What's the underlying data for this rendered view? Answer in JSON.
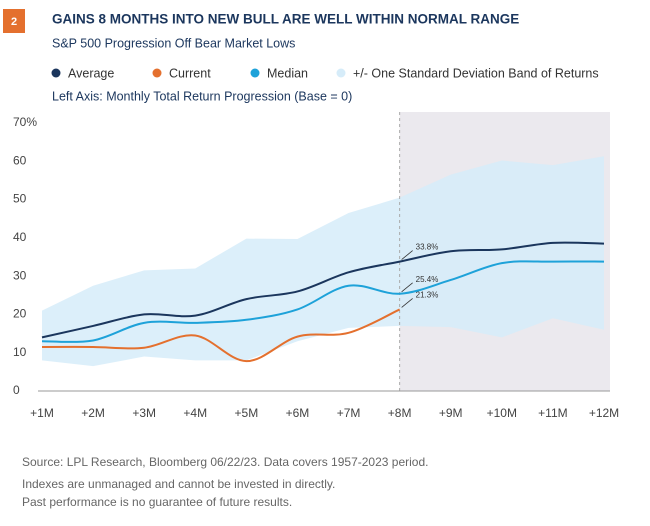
{
  "chart_data": {
    "type": "line",
    "badge": "2",
    "title": "GAINS 8 MONTHS INTO NEW BULL ARE WELL WITHIN NORMAL RANGE",
    "subtitle": "S&P 500 Progression Off Bear Market Lows",
    "axis_note": "Left Axis: Monthly Total Return Progression (Base = 0)",
    "categories": [
      "+1M",
      "+2M",
      "+3M",
      "+4M",
      "+5M",
      "+6M",
      "+7M",
      "+8M",
      "+9M",
      "+10M",
      "+11M",
      "+12M"
    ],
    "series": [
      {
        "name": "Average",
        "color": "#1b365d",
        "values": [
          14,
          17,
          20,
          19.7,
          24,
          26,
          31,
          33.8,
          36.5,
          37,
          38.7,
          38.5
        ],
        "value_labels": [
          null,
          null,
          null,
          null,
          null,
          null,
          null,
          "33.8%",
          null,
          null,
          null,
          null
        ]
      },
      {
        "name": "Current",
        "color": "#e4702e",
        "values": [
          11.5,
          11.5,
          11.3,
          14.5,
          7.8,
          14.2,
          15.2,
          21.3,
          null,
          null,
          null,
          null
        ],
        "value_labels": [
          null,
          null,
          null,
          null,
          null,
          null,
          null,
          "21.3%",
          null,
          null,
          null,
          null
        ]
      },
      {
        "name": "Median",
        "color": "#1ea2d9",
        "values": [
          13,
          13.2,
          17.8,
          17.8,
          18.6,
          21.3,
          27.5,
          25.4,
          29,
          33.4,
          33.8,
          33.8
        ],
        "value_labels": [
          null,
          null,
          null,
          null,
          null,
          null,
          null,
          "25.4%",
          null,
          null,
          null,
          null
        ]
      }
    ],
    "band": {
      "name": "+/- One Standard Deviation Band of Returns",
      "color": "#d6ecf9",
      "upper": [
        21,
        27.5,
        31.5,
        32,
        39.8,
        39.7,
        46.5,
        50.5,
        56.5,
        60.2,
        59,
        61.3
      ],
      "lower": [
        8,
        6.5,
        9,
        8,
        8,
        13,
        16.5,
        17,
        16.7,
        14,
        19,
        16
      ]
    },
    "ylim": [
      0,
      70
    ],
    "yticks": [
      0,
      10,
      20,
      30,
      40,
      50,
      60,
      {
        "value": 70,
        "label": "70%"
      }
    ],
    "grid": false,
    "notes": [
      "Source: LPL Research, Bloomberg  06/22/23. Data covers 1957-2023 period.",
      "Indexes are unmanaged and cannot be invested in directly.",
      "Past performance is no guarantee of future results."
    ]
  }
}
